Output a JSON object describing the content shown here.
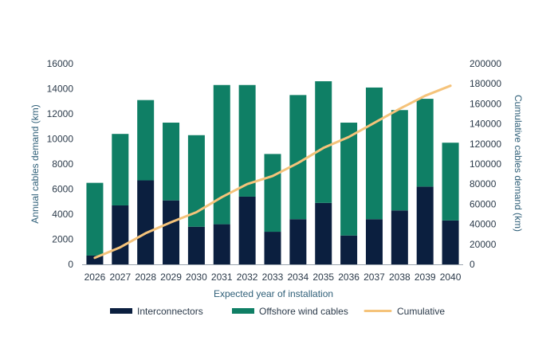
{
  "chart_data": {
    "type": "bar",
    "stacked": true,
    "categories": [
      "2026",
      "2027",
      "2028",
      "2029",
      "2030",
      "2031",
      "2032",
      "2033",
      "2034",
      "2035",
      "2036",
      "2037",
      "2038",
      "2039",
      "2040"
    ],
    "series": [
      {
        "name": "Interconnectors",
        "type": "bar",
        "axis": "left",
        "color": "#0b1f3f",
        "values": [
          700,
          4700,
          6700,
          5100,
          3000,
          3200,
          5400,
          2600,
          3600,
          4900,
          2300,
          3600,
          4300,
          6200,
          3500
        ]
      },
      {
        "name": "Offshore wind cables",
        "type": "bar",
        "axis": "left",
        "color": "#0f7f65",
        "values": [
          5800,
          5700,
          6400,
          6200,
          7300,
          11100,
          8900,
          6200,
          9900,
          9700,
          9000,
          10500,
          8000,
          7000,
          6200
        ]
      },
      {
        "name": "Cumulative",
        "type": "line",
        "axis": "right",
        "color": "#f5c37a",
        "values": [
          6500,
          17000,
          31000,
          42000,
          52000,
          67000,
          80000,
          88000,
          101000,
          116000,
          127000,
          141000,
          155000,
          168000,
          178000
        ]
      }
    ],
    "xlabel": "Expected year of installation",
    "ylabel": "Annual cables demand (km)",
    "y2label": "Cumulative cables demand (km)",
    "ylim": [
      0,
      16000
    ],
    "yticks": [
      0,
      2000,
      4000,
      6000,
      8000,
      10000,
      12000,
      14000,
      16000
    ],
    "y2lim": [
      0,
      200000
    ],
    "y2ticks": [
      0,
      20000,
      40000,
      60000,
      80000,
      100000,
      120000,
      140000,
      160000,
      180000,
      200000
    ],
    "grid": false,
    "legend_position": "bottom"
  }
}
